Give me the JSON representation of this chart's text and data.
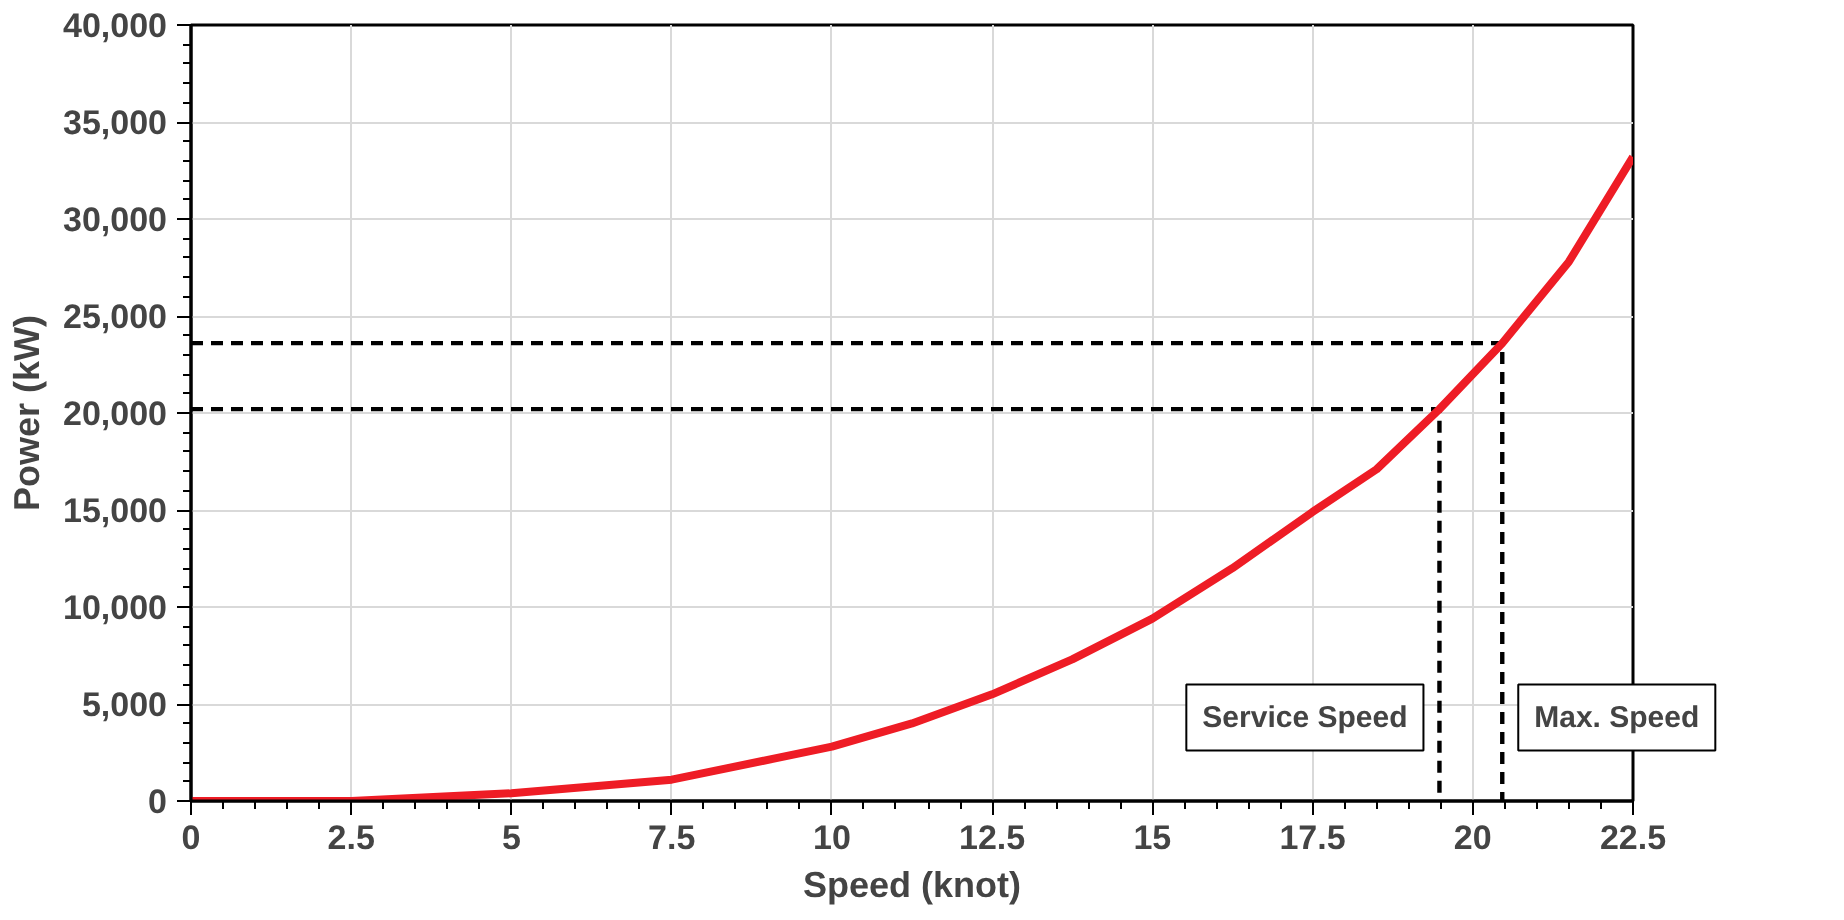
{
  "chart_data": {
    "type": "line",
    "xlabel": "Speed (knot)",
    "ylabel": "Power (kW)",
    "xlim": [
      0,
      22.5
    ],
    "xticks": [
      0,
      2.5,
      5,
      7.5,
      10,
      12.5,
      15,
      17.5,
      20,
      22.5
    ],
    "ylim": [
      0,
      40000
    ],
    "yticks": [
      {
        "value": 0,
        "label": "0"
      },
      {
        "value": 5000,
        "label": "5,000"
      },
      {
        "value": 10000,
        "label": "10,000"
      },
      {
        "value": 15000,
        "label": "15,000"
      },
      {
        "value": 20000,
        "label": "20,000"
      },
      {
        "value": 25000,
        "label": "25,000"
      },
      {
        "value": 30000,
        "label": "30,000"
      },
      {
        "value": 35000,
        "label": "35,000"
      },
      {
        "value": 40000,
        "label": "40,000"
      }
    ],
    "grid": true,
    "marker": "none",
    "series": [
      {
        "color": "#ee1c25",
        "x": [
          0,
          2.5,
          5,
          7.5,
          10,
          11.25,
          12.5,
          13.75,
          15,
          16.25,
          17.5,
          18.5,
          19.48,
          20.46,
          21.5,
          22.5
        ],
        "values": [
          0,
          0,
          400,
          1100,
          2800,
          4000,
          5500,
          7300,
          9400,
          12000,
          14900,
          17100,
          20200,
          23600,
          27800,
          33200
        ]
      },
      {
        "color": "#000000",
        "line_style": "dashed",
        "x": [
          0,
          19.48,
          19.48
        ],
        "values": [
          20200,
          20200,
          0
        ]
      },
      {
        "color": "#000000",
        "line_style": "dashed",
        "x": [
          0,
          20.46,
          20.46
        ],
        "values": [
          23600,
          23600,
          0
        ]
      }
    ],
    "annotations": [
      {
        "text": "Service Speed",
        "x": 19.48,
        "y": 4300
      },
      {
        "text": "Max. Speed",
        "x": 20.46,
        "y": 4300
      }
    ]
  }
}
